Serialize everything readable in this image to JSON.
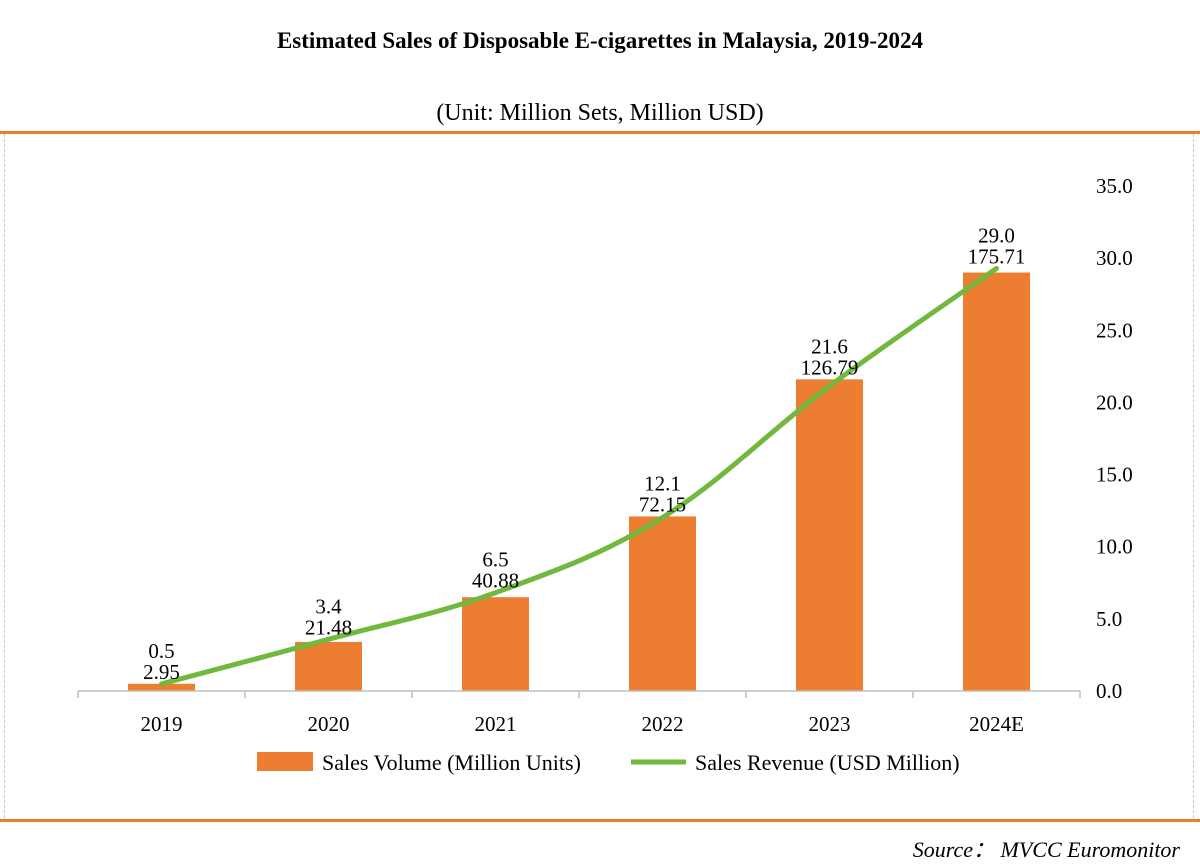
{
  "title": "Estimated Sales of Disposable E-cigarettes in Malaysia, 2019-2024",
  "subtitle": "(Unit: Million Sets, Million USD)",
  "source": "Source： MVCC  Euromonitor",
  "colors": {
    "bar": "#ED7D31",
    "line": "#70B83E",
    "rule": "#ED7D31"
  },
  "chart_data": {
    "type": "bar",
    "categories": [
      "2019",
      "2020",
      "2021",
      "2022",
      "2023",
      "2024E"
    ],
    "series": [
      {
        "name": "Sales Volume (Million Units)",
        "type": "bar",
        "values": [
          0.5,
          3.4,
          6.5,
          12.1,
          21.6,
          29.0
        ],
        "value_labels": [
          "0.5",
          "3.4",
          "6.5",
          "12.1",
          "21.6",
          "29.0"
        ]
      },
      {
        "name": "Sales Revenue (USD Million)",
        "type": "line",
        "values": [
          2.95,
          21.48,
          40.88,
          72.15,
          126.79,
          175.71
        ],
        "value_labels": [
          "2.95",
          "21.48",
          "40.88",
          "72.15",
          "126.79",
          "175.71"
        ]
      }
    ],
    "y_axis": {
      "position": "right",
      "ylim": [
        0,
        35
      ],
      "ticks": [
        "0.0",
        "5.0",
        "10.0",
        "15.0",
        "20.0",
        "25.0",
        "30.0",
        "35.0"
      ]
    },
    "line_ylim": [
      0,
      210
    ],
    "legend": "bottom-center",
    "grid": false
  }
}
